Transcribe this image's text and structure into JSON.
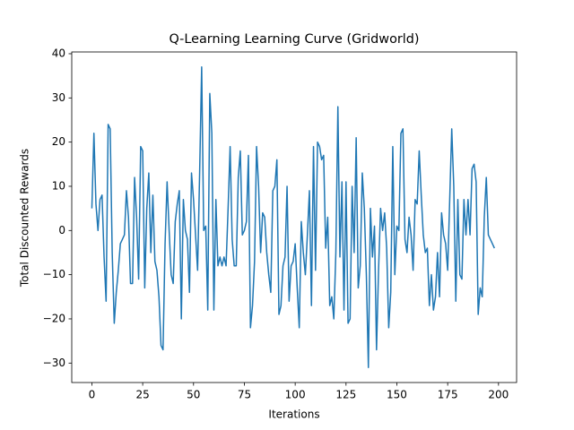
{
  "chart_data": {
    "type": "line",
    "title": "Q-Learning Learning Curve (Gridworld)",
    "xlabel": "Iterations",
    "ylabel": "Total Discounted Rewards",
    "color": "#1f77b4",
    "xlim": [
      -9.9,
      208.9
    ],
    "ylim": [
      -34.4,
      40.4
    ],
    "xticks": [
      0,
      25,
      50,
      75,
      100,
      125,
      150,
      175,
      200
    ],
    "yticks": [
      {
        "value": -30,
        "label": "−30"
      },
      {
        "value": -20,
        "label": "−20"
      },
      {
        "value": -10,
        "label": "−10"
      },
      0,
      10,
      20,
      30,
      40
    ],
    "values": [
      5,
      22,
      6,
      0,
      7,
      8,
      -6,
      -16,
      24,
      23,
      -5,
      -21,
      -14,
      -9,
      -3,
      -2,
      -1,
      9,
      3,
      -12,
      -12,
      12,
      3,
      -11,
      19,
      18,
      -13,
      5,
      13,
      -5,
      8,
      -7,
      -9,
      -15,
      -26,
      -27,
      -3,
      11,
      0,
      -10,
      -12,
      2,
      6,
      9,
      -20,
      7,
      0,
      -2,
      -14,
      13,
      7,
      -1,
      -9,
      13,
      37,
      0,
      1,
      -18,
      31,
      22,
      -18,
      7,
      -8,
      -6,
      -8,
      -6,
      -8,
      5,
      19,
      -2,
      -8,
      -8,
      12,
      18,
      -1,
      0,
      2,
      17,
      -22,
      -17,
      -7,
      19,
      10,
      -5,
      4,
      3,
      -5,
      -10,
      -14,
      9,
      10,
      16,
      -19,
      -17,
      -8,
      -6,
      10,
      -16,
      -8,
      -7,
      -3,
      -13,
      -22,
      2,
      -5,
      -10,
      -1,
      9,
      -17,
      19,
      -9,
      20,
      19,
      16,
      17,
      -4,
      3,
      -17,
      -15,
      -20,
      -5,
      28,
      -6,
      11,
      -18,
      11,
      -21,
      -20,
      10,
      -5,
      21,
      -13,
      -8,
      13,
      5,
      -10,
      -31,
      5,
      -6,
      1,
      -27,
      -9,
      5,
      0,
      4,
      -4,
      -22,
      -14,
      19,
      -10,
      1,
      0,
      22,
      23,
      -2,
      -5,
      3,
      -1,
      -9,
      7,
      6,
      18,
      8,
      -1,
      -5,
      -4,
      -17,
      -10,
      -18,
      -15,
      -5,
      -15,
      4,
      -1,
      -3,
      -9,
      7,
      23,
      10,
      -16,
      7,
      -10,
      -11,
      7,
      -1,
      7,
      -1,
      14,
      15,
      11,
      -19,
      -13,
      -15,
      3,
      12,
      -1,
      -2,
      -3,
      -4
    ]
  }
}
